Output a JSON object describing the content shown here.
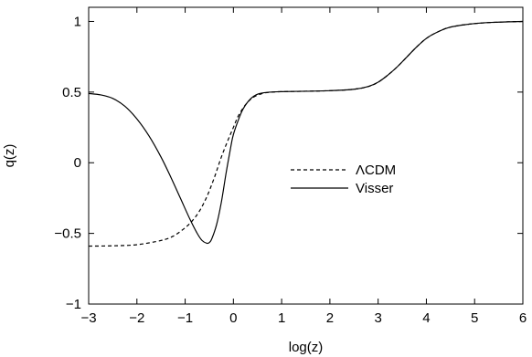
{
  "chart_data": {
    "type": "line",
    "xlabel": "log(z)",
    "ylabel": "q(z)",
    "xlim": [
      -3,
      6
    ],
    "ylim": [
      -1,
      1.1
    ],
    "xticks": [
      -3,
      -2,
      -1,
      0,
      1,
      2,
      3,
      4,
      5,
      6
    ],
    "yticks": [
      -1,
      -0.5,
      0,
      0.5,
      1
    ],
    "xtick_labels": [
      "−3",
      "−2",
      "−1",
      "0",
      "1",
      "2",
      "3",
      "4",
      "5",
      "6"
    ],
    "ytick_labels": [
      "−1",
      "−0.5",
      "0",
      "0.5",
      "1"
    ],
    "grid": false,
    "legend_position": "center-right",
    "series": [
      {
        "name": "ΛCDM",
        "style": "dashed",
        "color": "#000000",
        "x": [
          -3,
          -2.5,
          -2,
          -1.5,
          -1.25,
          -1,
          -0.85,
          -0.7,
          -0.55,
          -0.4,
          -0.25,
          -0.1,
          0,
          0.1,
          0.25,
          0.4,
          0.6,
          0.8,
          1,
          1.5,
          2,
          2.5,
          2.8,
          3,
          3.2,
          3.4,
          3.6,
          3.8,
          4,
          4.2,
          4.5,
          5,
          5.5,
          6
        ],
        "y": [
          -0.59,
          -0.588,
          -0.58,
          -0.55,
          -0.52,
          -0.46,
          -0.41,
          -0.34,
          -0.24,
          -0.11,
          0.04,
          0.17,
          0.25,
          0.33,
          0.41,
          0.46,
          0.49,
          0.5,
          0.503,
          0.506,
          0.51,
          0.52,
          0.54,
          0.57,
          0.62,
          0.68,
          0.75,
          0.82,
          0.88,
          0.92,
          0.96,
          0.985,
          0.995,
          1.0
        ]
      },
      {
        "name": "Visser",
        "style": "solid",
        "color": "#000000",
        "x": [
          -3,
          -2.75,
          -2.5,
          -2.25,
          -2,
          -1.75,
          -1.5,
          -1.3,
          -1.1,
          -0.9,
          -0.75,
          -0.65,
          -0.55,
          -0.5,
          -0.45,
          -0.35,
          -0.25,
          -0.15,
          -0.05,
          0,
          0.1,
          0.2,
          0.35,
          0.5,
          0.7,
          1,
          1.5,
          2,
          2.5,
          2.8,
          3,
          3.2,
          3.4,
          3.6,
          3.8,
          4,
          4.2,
          4.5,
          5,
          5.5,
          6
        ],
        "y": [
          0.49,
          0.48,
          0.455,
          0.4,
          0.31,
          0.19,
          0.04,
          -0.1,
          -0.25,
          -0.4,
          -0.5,
          -0.55,
          -0.57,
          -0.565,
          -0.54,
          -0.44,
          -0.28,
          -0.07,
          0.12,
          0.2,
          0.3,
          0.38,
          0.45,
          0.485,
          0.498,
          0.503,
          0.506,
          0.51,
          0.52,
          0.54,
          0.57,
          0.62,
          0.68,
          0.75,
          0.82,
          0.88,
          0.92,
          0.96,
          0.985,
          0.995,
          1.0
        ]
      }
    ]
  }
}
